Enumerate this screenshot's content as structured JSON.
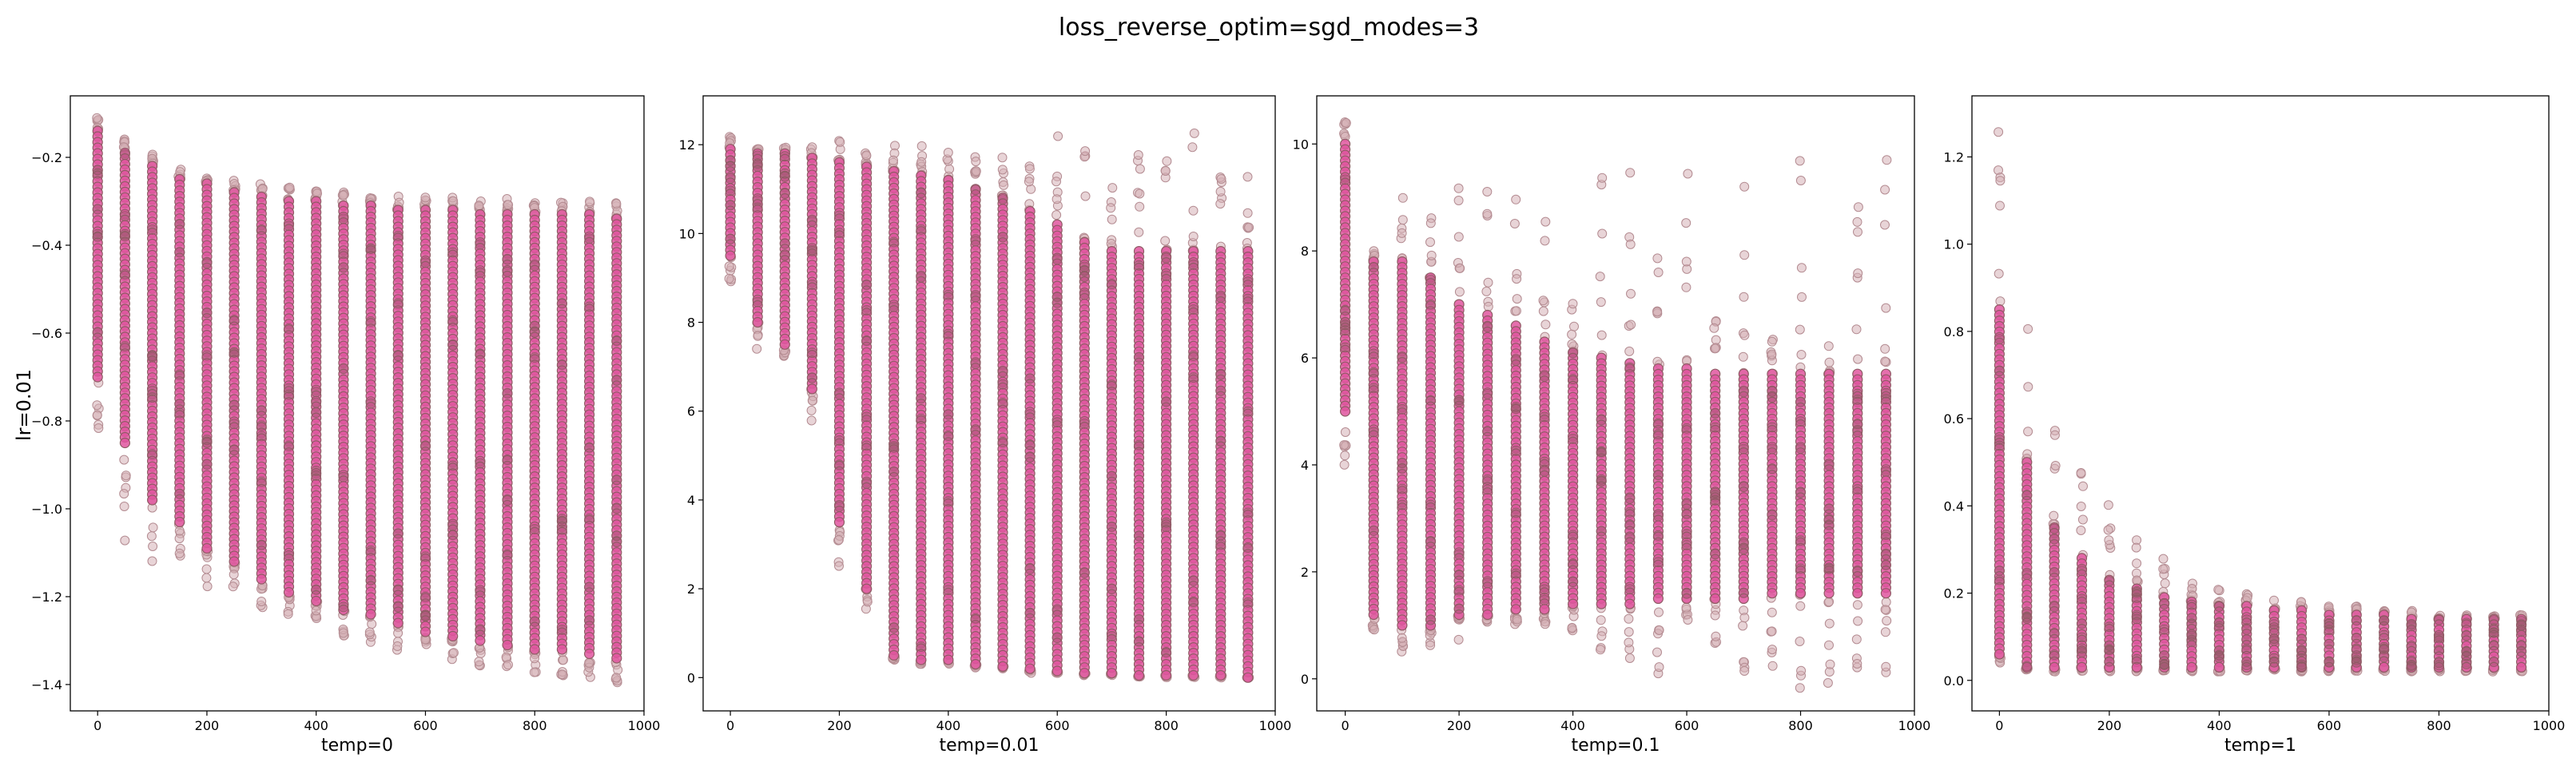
{
  "figure_title": "loss_reverse_optim=sgd_modes=3",
  "row_label": "lr=0.01",
  "colors": {
    "point_fill": "#e0559f",
    "point_edge": "#8f5b64",
    "faint_fill": "#d6b1b6",
    "faint_edge": "#b48c92"
  },
  "chart_data": [
    {
      "type": "scatter",
      "xlabel": "temp=0",
      "xlim": [
        -50,
        1000
      ],
      "ylim": [
        -1.46,
        -0.06
      ],
      "xticks": [
        0,
        200,
        400,
        600,
        800,
        1000
      ],
      "yticks": [
        -0.2,
        -0.4,
        -0.6,
        -0.8,
        -1.0,
        -1.2,
        -1.4
      ],
      "ytick_labels": [
        "−0.2",
        "−0.4",
        "−0.6",
        "−0.8",
        "−1.0",
        "−1.2",
        "−1.4"
      ],
      "x": [
        0,
        50,
        100,
        150,
        200,
        250,
        300,
        350,
        400,
        450,
        500,
        550,
        600,
        650,
        700,
        750,
        800,
        850,
        900,
        950
      ],
      "core_low": [
        -0.7,
        -0.85,
        -0.98,
        -1.03,
        -1.09,
        -1.12,
        -1.16,
        -1.19,
        -1.21,
        -1.23,
        -1.24,
        -1.26,
        -1.28,
        -1.29,
        -1.3,
        -1.31,
        -1.32,
        -1.32,
        -1.33,
        -1.34
      ],
      "core_high": [
        -0.14,
        -0.19,
        -0.22,
        -0.25,
        -0.26,
        -0.28,
        -0.29,
        -0.3,
        -0.3,
        -0.31,
        -0.31,
        -0.32,
        -0.32,
        -0.32,
        -0.33,
        -0.33,
        -0.33,
        -0.33,
        -0.33,
        -0.34
      ],
      "spread_low": [
        -0.83,
        -1.08,
        -1.12,
        -1.15,
        -1.18,
        -1.2,
        -1.23,
        -1.26,
        -1.28,
        -1.29,
        -1.31,
        -1.33,
        -1.34,
        -1.35,
        -1.36,
        -1.37,
        -1.38,
        -1.38,
        -1.39,
        -1.4
      ],
      "spread_high": [
        -0.1,
        -0.15,
        -0.19,
        -0.22,
        -0.24,
        -0.25,
        -0.26,
        -0.26,
        -0.27,
        -0.27,
        -0.28,
        -0.28,
        -0.29,
        -0.29,
        -0.29,
        -0.29,
        -0.3,
        -0.3,
        -0.3,
        -0.3
      ]
    },
    {
      "type": "scatter",
      "xlabel": "temp=0.01",
      "xlim": [
        -50,
        1000
      ],
      "ylim": [
        -0.75,
        13.1
      ],
      "xticks": [
        0,
        200,
        400,
        600,
        800,
        1000
      ],
      "yticks": [
        0,
        2,
        4,
        6,
        8,
        10,
        12
      ],
      "ytick_labels": [
        "0",
        "2",
        "4",
        "6",
        "8",
        "10",
        "12"
      ],
      "x": [
        0,
        50,
        100,
        150,
        200,
        250,
        300,
        350,
        400,
        450,
        500,
        550,
        600,
        650,
        700,
        750,
        800,
        850,
        900,
        950
      ],
      "core_low": [
        9.5,
        8.0,
        7.5,
        6.5,
        3.5,
        2.0,
        0.5,
        0.4,
        0.4,
        0.3,
        0.25,
        0.2,
        0.15,
        0.1,
        0.1,
        0.05,
        0.05,
        0.05,
        0.05,
        0.0
      ],
      "core_high": [
        11.9,
        11.8,
        11.8,
        11.7,
        11.6,
        11.5,
        11.4,
        11.3,
        11.2,
        11.0,
        10.8,
        10.5,
        10.2,
        9.8,
        9.6,
        9.6,
        9.6,
        9.6,
        9.6,
        9.6
      ],
      "spread_low": [
        8.9,
        7.3,
        7.2,
        5.7,
        2.4,
        1.5,
        0.4,
        0.3,
        0.3,
        0.2,
        0.2,
        0.1,
        0.1,
        0.05,
        0.05,
        0.0,
        0.0,
        0.0,
        0.0,
        0.0
      ],
      "spread_high": [
        12.2,
        12.0,
        12.0,
        12.0,
        12.1,
        12.0,
        12.0,
        12.0,
        12.0,
        11.8,
        11.8,
        11.6,
        12.3,
        12.0,
        11.2,
        12.0,
        11.9,
        12.5,
        11.3,
        11.3
      ]
    },
    {
      "type": "scatter",
      "xlabel": "temp=0.1",
      "xlim": [
        -50,
        1000
      ],
      "ylim": [
        -0.6,
        10.9
      ],
      "xticks": [
        0,
        200,
        400,
        600,
        800,
        1000
      ],
      "yticks": [
        0,
        2,
        4,
        6,
        8,
        10
      ],
      "ytick_labels": [
        "0",
        "2",
        "4",
        "6",
        "8",
        "10"
      ],
      "x": [
        0,
        50,
        100,
        150,
        200,
        250,
        300,
        350,
        400,
        450,
        500,
        550,
        600,
        650,
        700,
        750,
        800,
        850,
        900,
        950
      ],
      "core_low": [
        5.0,
        1.2,
        1.0,
        1.0,
        1.2,
        1.2,
        1.3,
        1.3,
        1.4,
        1.4,
        1.4,
        1.5,
        1.5,
        1.5,
        1.5,
        1.6,
        1.6,
        1.6,
        1.6,
        1.6
      ],
      "core_high": [
        10.0,
        7.8,
        7.8,
        7.5,
        7.0,
        6.8,
        6.6,
        6.3,
        6.1,
        6.0,
        5.9,
        5.8,
        5.8,
        5.7,
        5.7,
        5.7,
        5.7,
        5.7,
        5.7,
        5.7
      ],
      "spread_low": [
        4.0,
        0.9,
        0.5,
        0.5,
        0.7,
        0.8,
        1.0,
        1.0,
        0.8,
        0.5,
        0.3,
        0.0,
        0.1,
        -0.2,
        0.0,
        -0.1,
        -0.2,
        -0.1,
        -0.3,
        -0.3
      ],
      "spread_high": [
        10.5,
        8.0,
        9.0,
        9.0,
        9.3,
        9.5,
        9.3,
        9.6,
        7.5,
        9.5,
        9.6,
        9.7,
        9.8,
        6.8,
        9.7,
        6.6,
        9.8,
        6.6,
        9.7,
        9.8
      ]
    },
    {
      "type": "scatter",
      "xlabel": "temp=1",
      "xlim": [
        -50,
        1000
      ],
      "ylim": [
        -0.07,
        1.34
      ],
      "xticks": [
        0,
        200,
        400,
        600,
        800,
        1000
      ],
      "yticks": [
        0.0,
        0.2,
        0.4,
        0.6,
        0.8,
        1.0,
        1.2
      ],
      "ytick_labels": [
        "0.0",
        "0.2",
        "0.4",
        "0.6",
        "0.8",
        "1.0",
        "1.2"
      ],
      "x": [
        0,
        50,
        100,
        150,
        200,
        250,
        300,
        350,
        400,
        450,
        500,
        550,
        600,
        650,
        700,
        750,
        800,
        850,
        900,
        950
      ],
      "core_low": [
        0.06,
        0.03,
        0.03,
        0.03,
        0.03,
        0.03,
        0.03,
        0.03,
        0.03,
        0.03,
        0.03,
        0.03,
        0.03,
        0.03,
        0.03,
        0.03,
        0.03,
        0.03,
        0.03,
        0.03
      ],
      "core_high": [
        0.85,
        0.5,
        0.35,
        0.28,
        0.23,
        0.21,
        0.19,
        0.18,
        0.17,
        0.17,
        0.16,
        0.16,
        0.15,
        0.15,
        0.15,
        0.14,
        0.14,
        0.14,
        0.14,
        0.14
      ],
      "spread_low": [
        0.04,
        0.02,
        0.02,
        0.02,
        0.02,
        0.02,
        0.02,
        0.02,
        0.02,
        0.02,
        0.02,
        0.02,
        0.02,
        0.02,
        0.02,
        0.02,
        0.02,
        0.02,
        0.02,
        0.02
      ],
      "spread_high": [
        1.28,
        0.91,
        0.69,
        0.53,
        0.43,
        0.34,
        0.28,
        0.23,
        0.21,
        0.2,
        0.19,
        0.18,
        0.17,
        0.17,
        0.16,
        0.16,
        0.15,
        0.15,
        0.15,
        0.15
      ]
    }
  ]
}
